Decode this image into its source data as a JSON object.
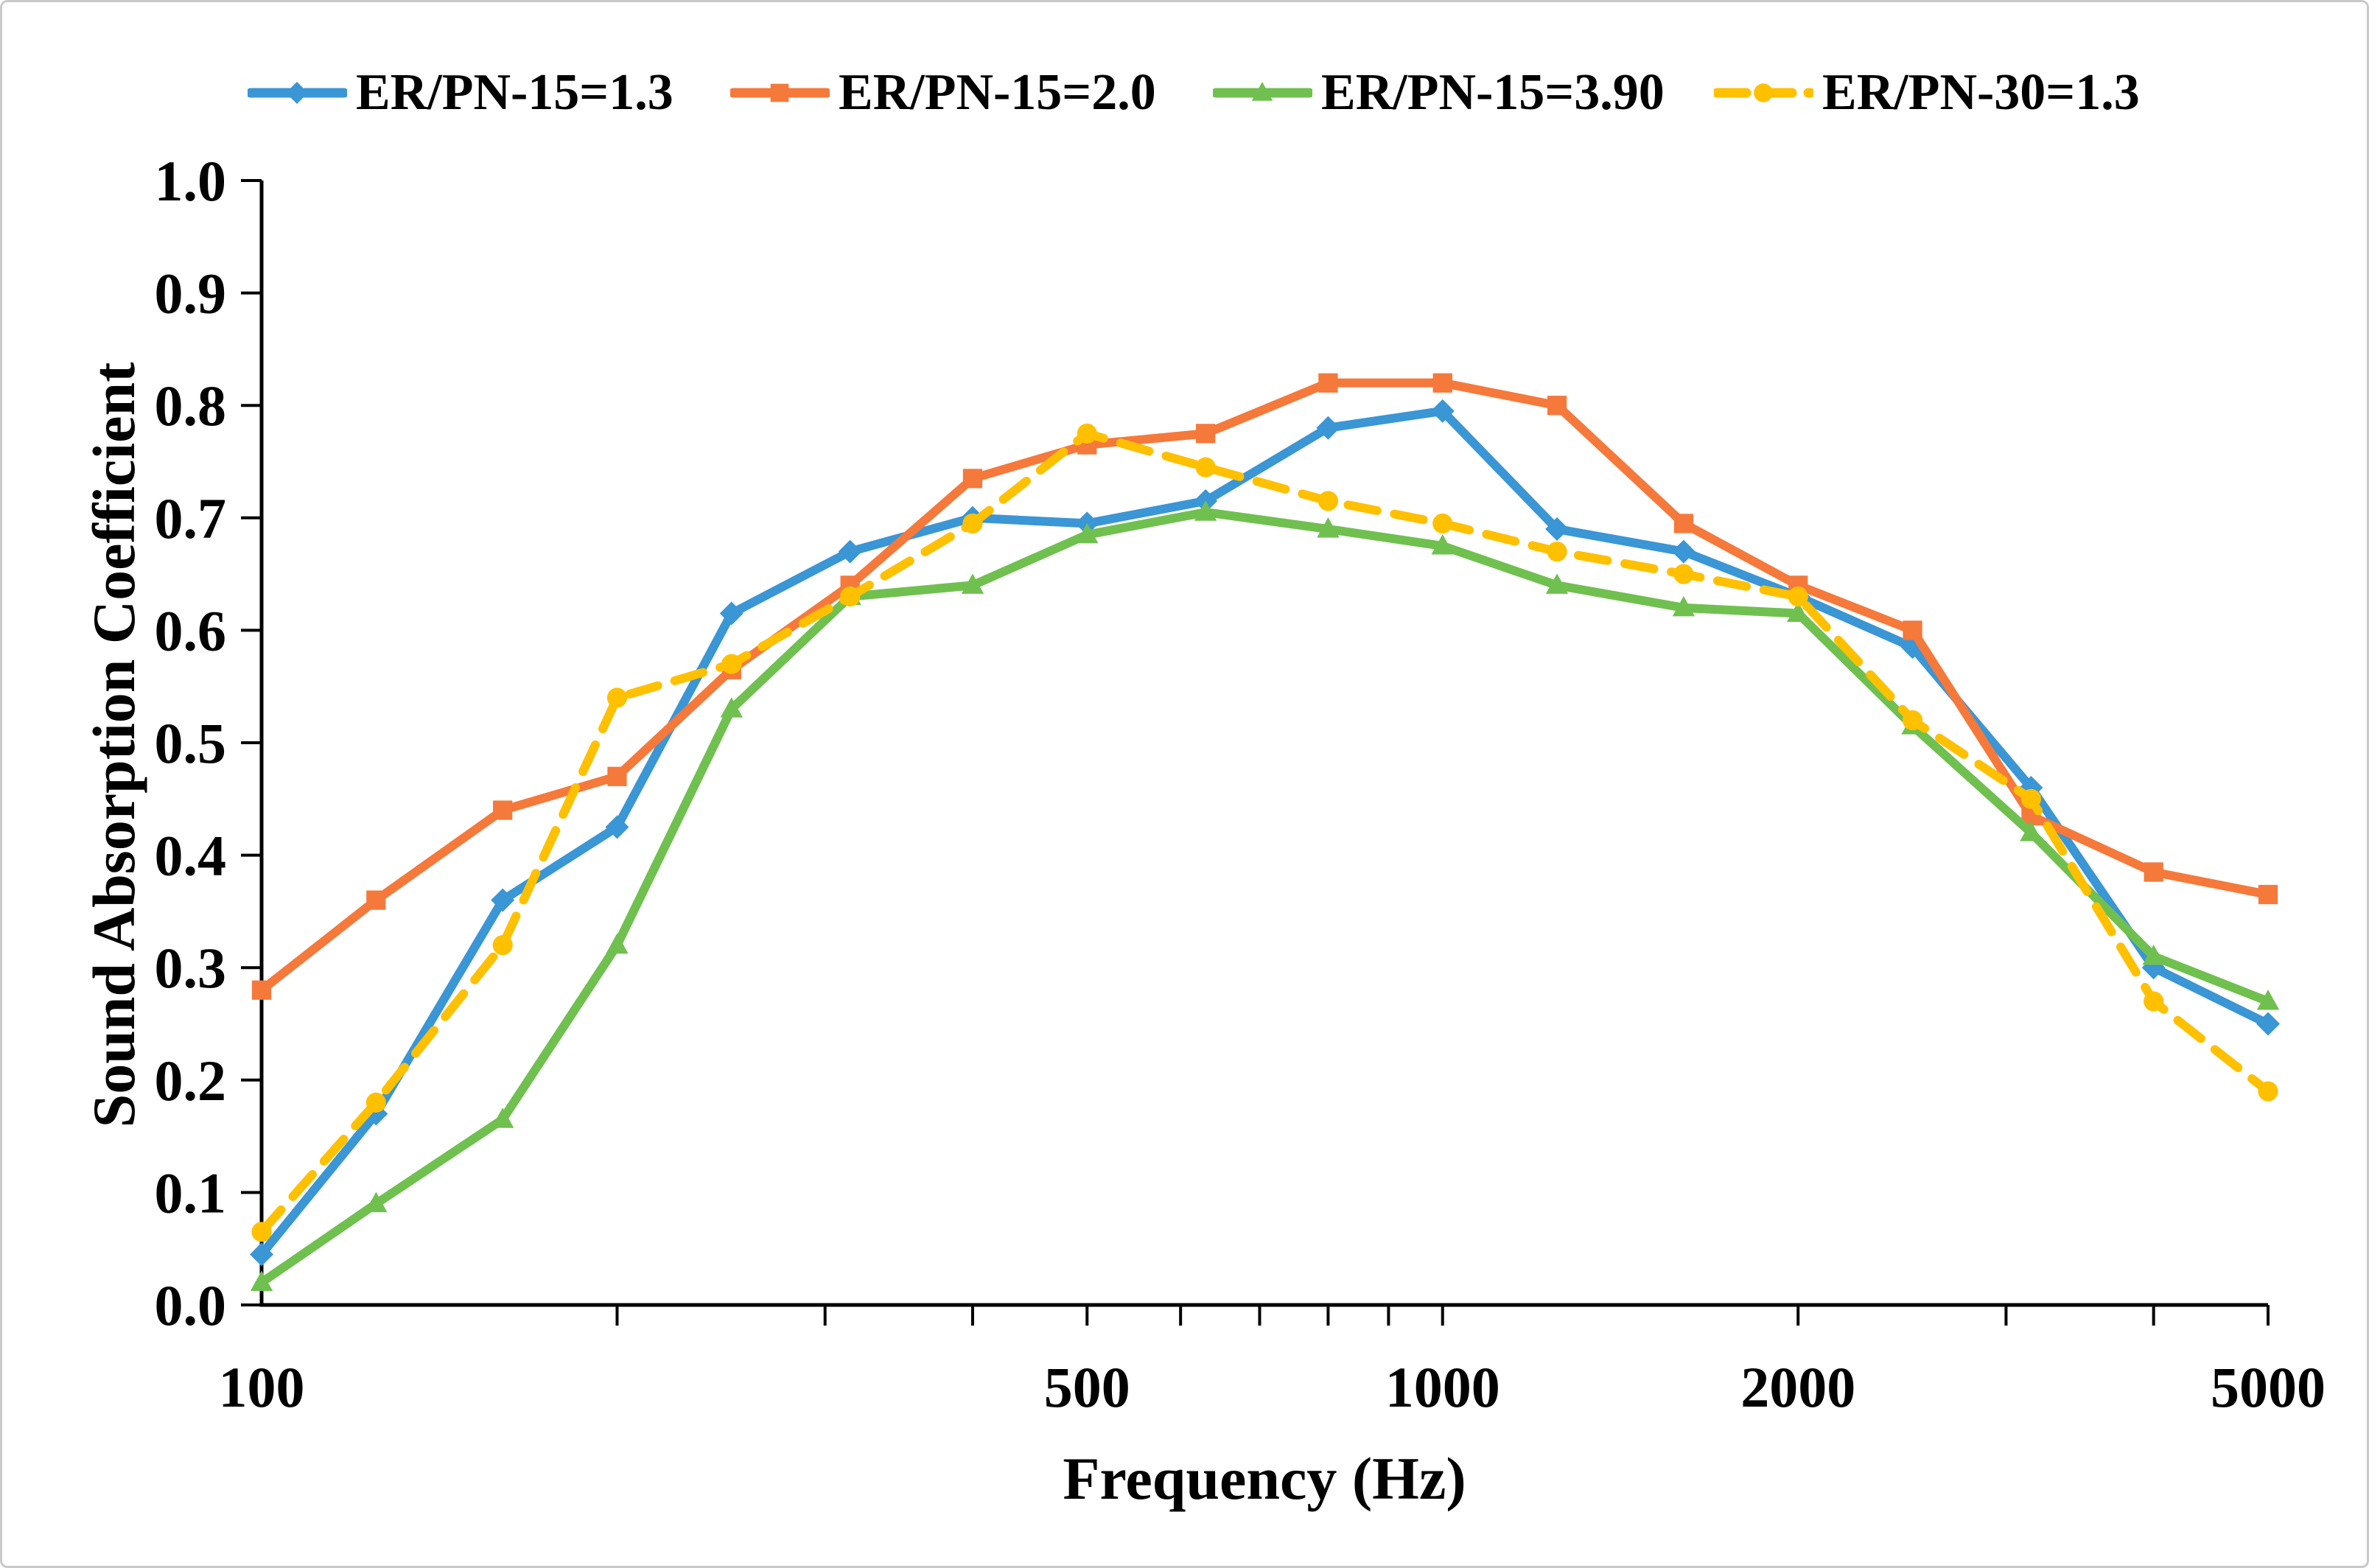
{
  "figure": {
    "background_color": "#ffffff",
    "border_color": "#c9c9c9"
  },
  "chart_data": {
    "type": "line",
    "title": "",
    "xlabel": "Frequency (Hz)",
    "ylabel": "Sound Absorption Coefficient",
    "x_scale": "log",
    "xlim": [
      100,
      5000
    ],
    "ylim": [
      0.0,
      1.0
    ],
    "grid": false,
    "legend_position": "top",
    "x": [
      100,
      125,
      160,
      200,
      250,
      315,
      400,
      500,
      630,
      800,
      1000,
      1250,
      1600,
      2000,
      2500,
      3150,
      4000,
      5000
    ],
    "x_major_ticks": [
      {
        "value": 100,
        "label": "100"
      },
      {
        "value": 500,
        "label": "500"
      },
      {
        "value": 1000,
        "label": "1000"
      },
      {
        "value": 2000,
        "label": "2000"
      },
      {
        "value": 5000,
        "label": "5000"
      }
    ],
    "x_minor_ticks": [
      200,
      300,
      400,
      500,
      600,
      700,
      800,
      900,
      1000,
      2000,
      3000,
      4000,
      5000
    ],
    "y_ticks": [
      {
        "value": 0.0,
        "label": "0.0"
      },
      {
        "value": 0.1,
        "label": "0.1"
      },
      {
        "value": 0.2,
        "label": "0.2"
      },
      {
        "value": 0.3,
        "label": "0.3"
      },
      {
        "value": 0.4,
        "label": "0.4"
      },
      {
        "value": 0.5,
        "label": "0.5"
      },
      {
        "value": 0.6,
        "label": "0.6"
      },
      {
        "value": 0.7,
        "label": "0.7"
      },
      {
        "value": 0.8,
        "label": "0.8"
      },
      {
        "value": 0.9,
        "label": "0.9"
      },
      {
        "value": 1.0,
        "label": "1.0"
      }
    ],
    "series": [
      {
        "name": "ER/PN-15=1.3",
        "color": "#3A96D5",
        "line_style": "solid",
        "marker": "diamond",
        "values": [
          0.045,
          0.17,
          0.36,
          0.425,
          0.615,
          0.67,
          0.7,
          0.695,
          0.715,
          0.78,
          0.795,
          0.69,
          0.67,
          0.63,
          0.585,
          0.46,
          0.3,
          0.25
        ]
      },
      {
        "name": "ER/PN-15=2.0",
        "color": "#F5793B",
        "line_style": "solid",
        "marker": "square",
        "values": [
          0.28,
          0.36,
          0.44,
          0.47,
          0.565,
          0.64,
          0.735,
          0.765,
          0.775,
          0.82,
          0.82,
          0.8,
          0.695,
          0.64,
          0.6,
          0.435,
          0.385,
          0.365
        ]
      },
      {
        "name": "ER/PN-15=3.90",
        "color": "#70C050",
        "line_style": "solid",
        "marker": "triangle",
        "values": [
          0.02,
          0.09,
          0.165,
          0.32,
          0.53,
          0.63,
          0.64,
          0.685,
          0.705,
          0.69,
          0.675,
          0.64,
          0.62,
          0.615,
          0.515,
          0.42,
          0.31,
          0.27
        ]
      },
      {
        "name": "ER/PN-30=1.3",
        "color": "#FFC000",
        "line_style": "dashed",
        "marker": "circle",
        "values": [
          0.065,
          0.18,
          0.32,
          0.54,
          0.57,
          0.63,
          0.695,
          0.775,
          0.745,
          0.715,
          0.695,
          0.67,
          0.65,
          0.63,
          0.52,
          0.45,
          0.27,
          0.19
        ]
      }
    ]
  }
}
